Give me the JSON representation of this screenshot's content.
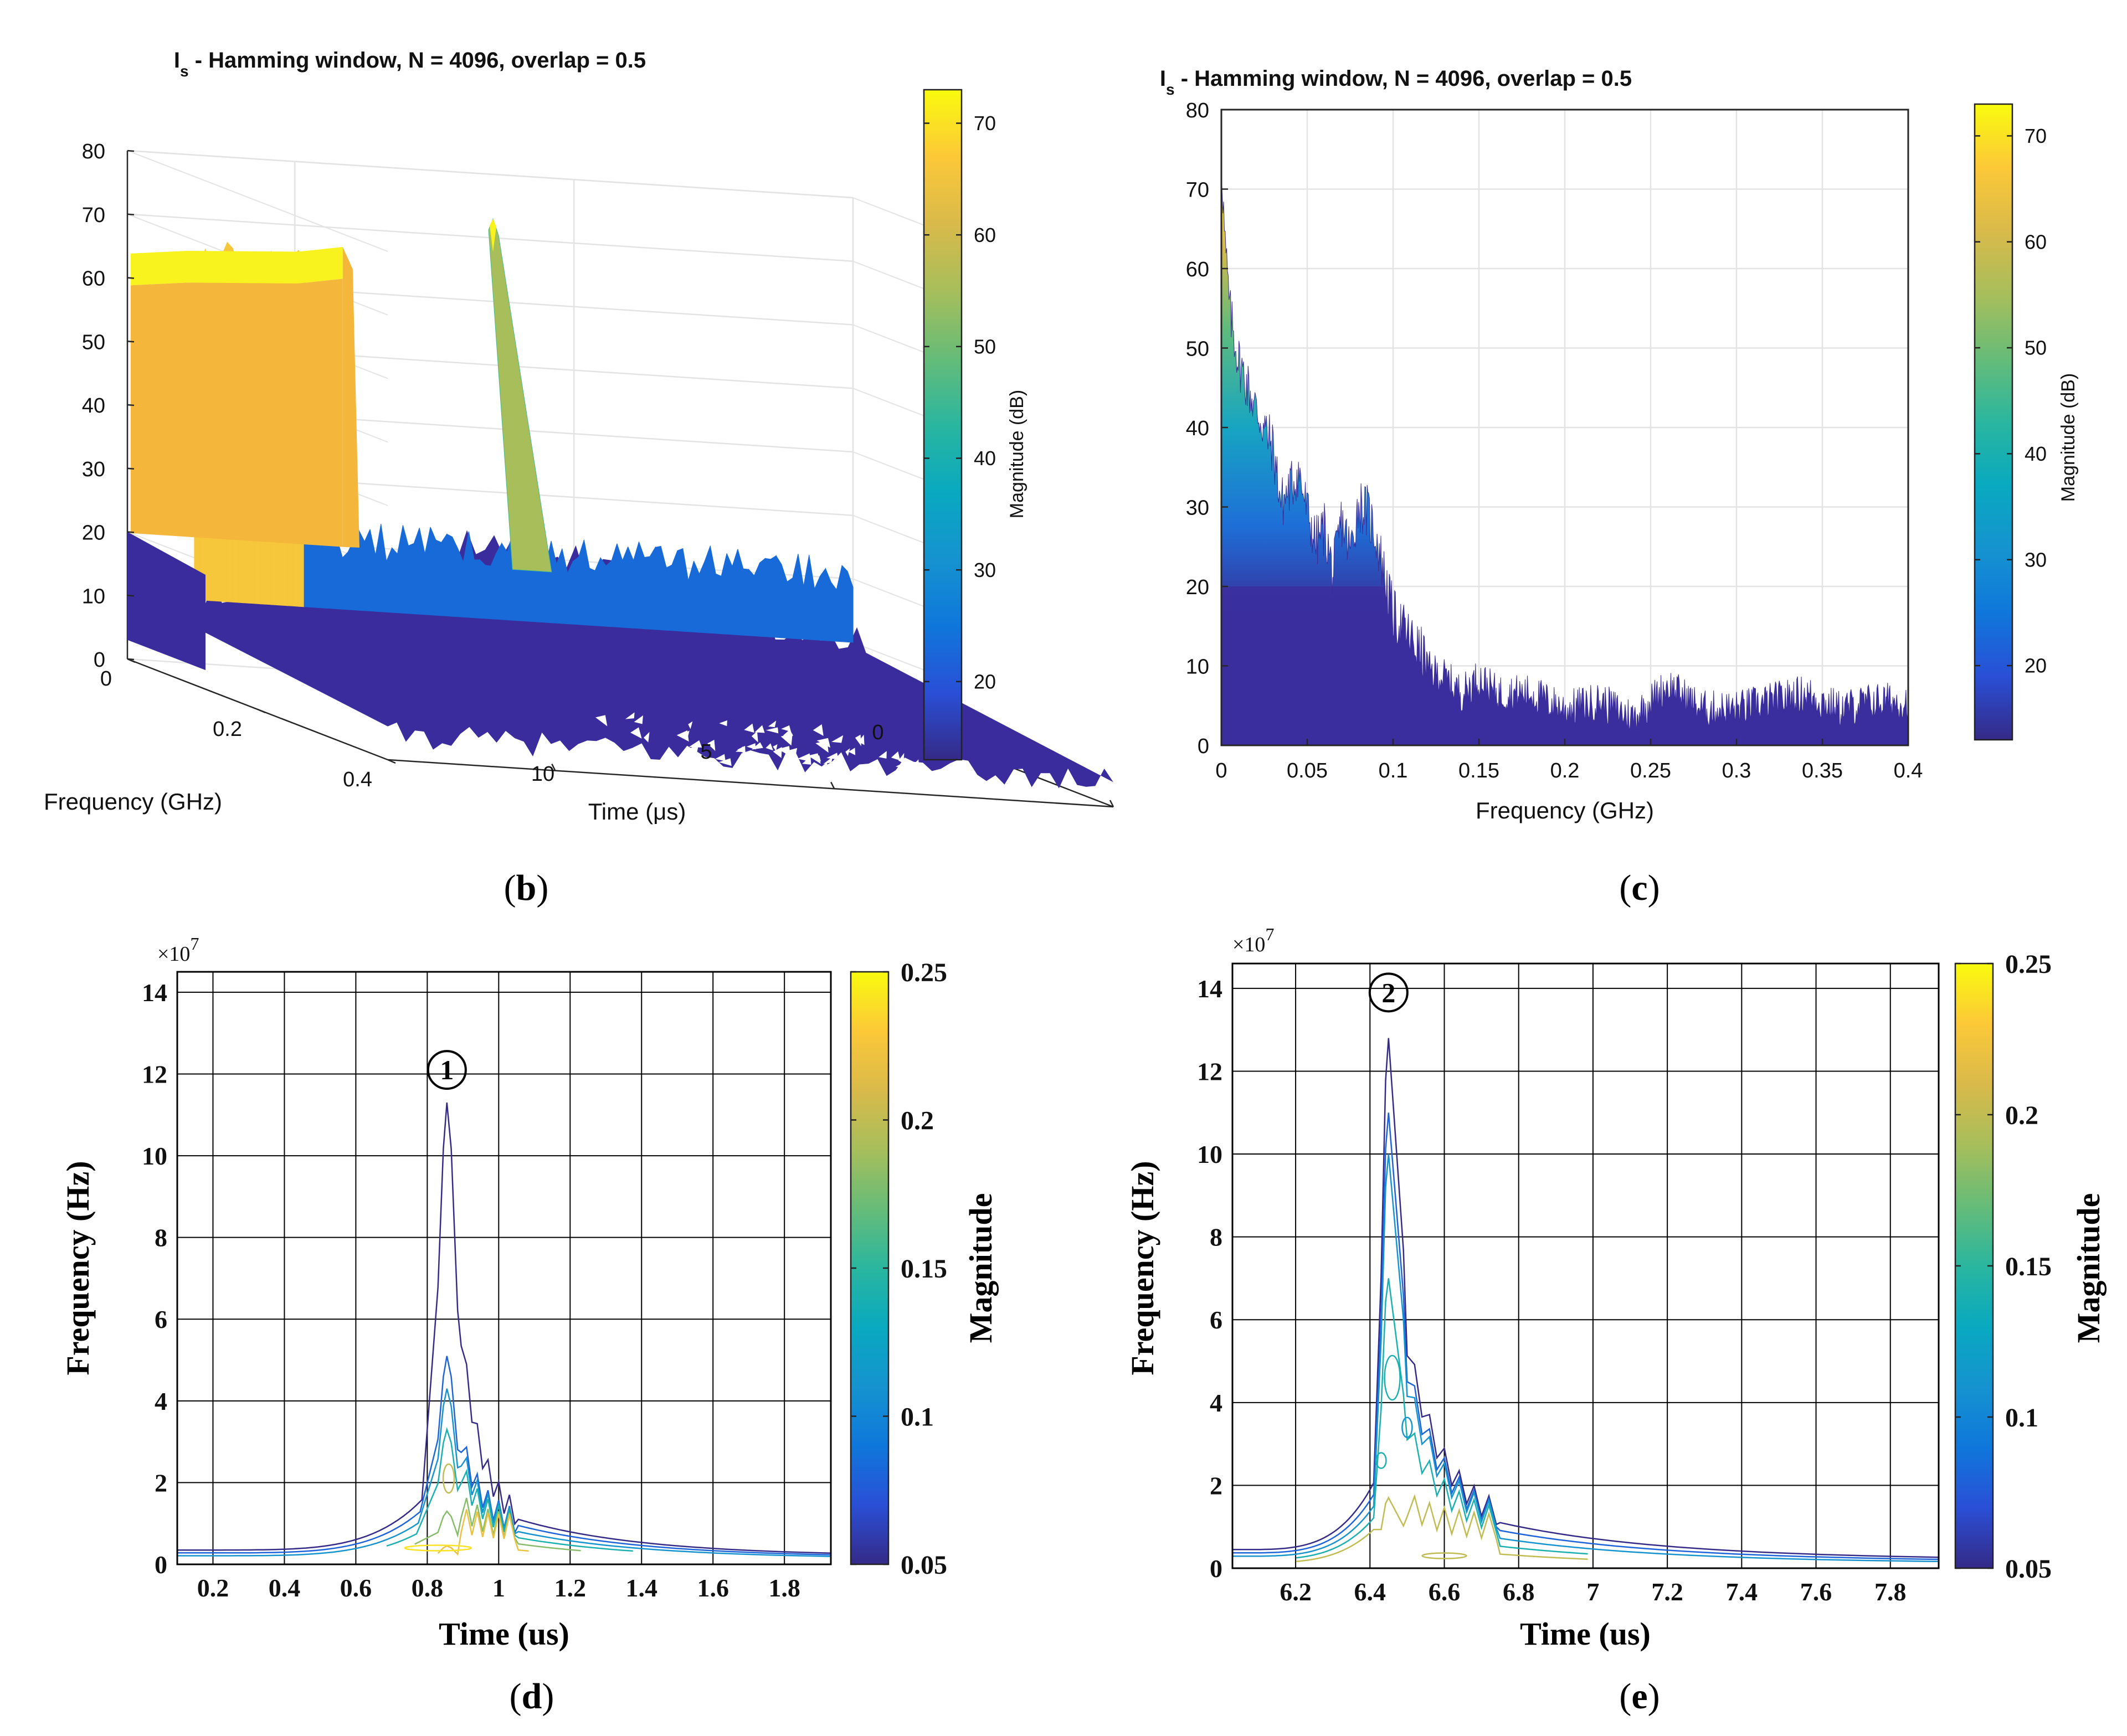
{
  "palette": {
    "parula": [
      "#352A87",
      "#2A4FD6",
      "#0F77DB",
      "#1593CF",
      "#09A9C0",
      "#2AB69F",
      "#66BC78",
      "#A7BE5B",
      "#D9BA4A",
      "#FCC838",
      "#F9FB0E"
    ],
    "grid_light": "#E3E3E3",
    "grid_dark": "#000000",
    "axis": "#262626",
    "text": "#111111",
    "fill_blue": "#3B2F9E",
    "fill_orange": "#F5B63C",
    "fill_yellow": "#F8F21F"
  },
  "panels": {
    "b": {
      "label": "(b)"
    },
    "c": {
      "label": "(c)"
    },
    "d": {
      "label": "(d)"
    },
    "e": {
      "label": "(e)"
    }
  },
  "chart_data": [
    {
      "id": "b",
      "type": "surface3d",
      "title": "I",
      "title_sub": "s",
      "title_rest": " - Hamming window, N = 4096, overlap = 0.5",
      "xlabel": "Time (μs)",
      "ylabel": "Frequency (GHz)",
      "zlabel": "",
      "xlim": [
        0,
        13
      ],
      "ylim": [
        0,
        0.4
      ],
      "zlim": [
        0,
        80
      ],
      "x_ticks": [
        0,
        5,
        10
      ],
      "x_tick_labels": [
        "0",
        "5",
        "10"
      ],
      "y_ticks": [
        0,
        0.2,
        0.4
      ],
      "y_tick_labels": [
        "0",
        "0.2",
        "0.4"
      ],
      "z_ticks": [
        0,
        10,
        20,
        30,
        40,
        50,
        60,
        70,
        80
      ],
      "z_tick_labels": [
        "0",
        "10",
        "20",
        "30",
        "40",
        "50",
        "60",
        "70",
        "80"
      ],
      "colorbar": {
        "label": "Magnitude (dB)",
        "range": [
          13,
          73
        ],
        "ticks": [
          20,
          30,
          40,
          50,
          60,
          70
        ],
        "tick_labels": [
          "20",
          "30",
          "40",
          "50",
          "60",
          "70"
        ]
      },
      "dc_ridge_db": {
        "t": [
          0,
          4,
          8,
          10,
          12,
          13
        ],
        "db": [
          70,
          73,
          69,
          66,
          65,
          64
        ]
      },
      "time_profile_peak_db": {
        "t": [
          0.9,
          2,
          3,
          4,
          5,
          5.5,
          6.45,
          7.5,
          9,
          10.5
        ],
        "db": [
          66,
          33,
          48,
          46,
          48,
          38,
          73,
          40,
          31,
          23
        ]
      }
    },
    {
      "id": "c",
      "type": "area",
      "title": "I",
      "title_sub": "s",
      "title_rest": " - Hamming window, N = 4096, overlap = 0.5",
      "xlabel": "Frequency (GHz)",
      "ylabel": "",
      "xlim": [
        0,
        0.4
      ],
      "ylim": [
        0,
        80
      ],
      "x_ticks": [
        0,
        0.05,
        0.1,
        0.15,
        0.2,
        0.25,
        0.3,
        0.35,
        0.4
      ],
      "x_tick_labels": [
        "0",
        "0.05",
        "0.1",
        "0.15",
        "0.2",
        "0.25",
        "0.3",
        "0.35",
        "0.4"
      ],
      "y_ticks": [
        0,
        10,
        20,
        30,
        40,
        50,
        60,
        70,
        80
      ],
      "y_tick_labels": [
        "0",
        "10",
        "20",
        "30",
        "40",
        "50",
        "60",
        "70",
        "80"
      ],
      "grid": true,
      "colorbar": {
        "label": "Magnitude (dB)",
        "range": [
          13,
          73
        ],
        "ticks": [
          20,
          30,
          40,
          50,
          60,
          70
        ],
        "tick_labels": [
          "20",
          "30",
          "40",
          "50",
          "60",
          "70"
        ]
      },
      "envelope": {
        "x": [
          0,
          0.002,
          0.005,
          0.01,
          0.015,
          0.02,
          0.03,
          0.035,
          0.045,
          0.05,
          0.055,
          0.06,
          0.065,
          0.07,
          0.075,
          0.08,
          0.085,
          0.09,
          0.095,
          0.1,
          0.11,
          0.12,
          0.13,
          0.14,
          0.15,
          0.16,
          0.18,
          0.2,
          0.22,
          0.24,
          0.26,
          0.28,
          0.3,
          0.32,
          0.34,
          0.36,
          0.38,
          0.4
        ],
        "db": [
          73,
          62,
          53,
          47,
          44,
          41,
          36,
          29,
          33,
          28,
          24,
          26,
          20,
          27,
          23,
          29,
          28,
          25,
          20,
          15,
          12,
          9,
          8,
          6,
          8,
          6,
          6,
          4,
          5,
          3,
          7,
          4,
          4,
          5,
          6,
          4,
          5,
          5
        ]
      }
    },
    {
      "id": "d",
      "type": "contour",
      "title": "",
      "xlabel": "Time (us)",
      "ylabel": "Frequency (Hz)",
      "y_exponent": "×10",
      "y_exponent_power": "7",
      "xlim": [
        0.1,
        1.93
      ],
      "ylim": [
        0,
        14.5
      ],
      "x_ticks": [
        0.2,
        0.4,
        0.6,
        0.8,
        1,
        1.2,
        1.4,
        1.6,
        1.8
      ],
      "x_tick_labels": [
        "0.2",
        "0.4",
        "0.6",
        "0.8",
        "1",
        "1.2",
        "1.4",
        "1.6",
        "1.8"
      ],
      "y_ticks": [
        0,
        2,
        4,
        6,
        8,
        10,
        12,
        14
      ],
      "y_tick_labels": [
        "0",
        "2",
        "4",
        "6",
        "8",
        "10",
        "12",
        "14"
      ],
      "grid": true,
      "colorbar": {
        "label": "Magnitude",
        "range": [
          0.05,
          0.25
        ],
        "ticks": [
          0.05,
          0.1,
          0.15,
          0.2,
          0.25
        ],
        "tick_labels": [
          "0.05",
          "0.1",
          "0.15",
          "0.2",
          "0.25"
        ]
      },
      "annotation": {
        "text": "1",
        "x": 0.855,
        "y": 12.1
      },
      "peak": {
        "time": 0.855,
        "levels": [
          0.05,
          0.08,
          0.11,
          0.14,
          0.18,
          0.22
        ],
        "peak_freq_e7": [
          11.3,
          5.1,
          4.3,
          3.3,
          1.3,
          0.45
        ]
      }
    },
    {
      "id": "e",
      "type": "contour",
      "title": "",
      "xlabel": "Time (us)",
      "ylabel": "Frequency (Hz)",
      "y_exponent": "×10",
      "y_exponent_power": "7",
      "xlim": [
        6.03,
        7.93
      ],
      "ylim": [
        0,
        14.6
      ],
      "x_ticks": [
        6.2,
        6.4,
        6.6,
        6.8,
        7,
        7.2,
        7.4,
        7.6,
        7.8
      ],
      "x_tick_labels": [
        "6.2",
        "6.4",
        "6.6",
        "6.8",
        "7",
        "7.2",
        "7.4",
        "7.6",
        "7.8"
      ],
      "y_ticks": [
        0,
        2,
        4,
        6,
        8,
        10,
        12,
        14
      ],
      "y_tick_labels": [
        "0",
        "2",
        "4",
        "6",
        "8",
        "10",
        "12",
        "14"
      ],
      "grid": true,
      "colorbar": {
        "label": "Magnitude",
        "range": [
          0.05,
          0.25
        ],
        "ticks": [
          0.05,
          0.1,
          0.15,
          0.2,
          0.25
        ],
        "tick_labels": [
          "0.05",
          "0.1",
          "0.15",
          "0.2",
          "0.25"
        ]
      },
      "annotation": {
        "text": "2",
        "x": 6.45,
        "y": 13.9
      },
      "peak": {
        "time": 6.45,
        "levels": [
          0.05,
          0.08,
          0.11,
          0.14,
          0.2
        ],
        "peak_freq_e7": [
          12.8,
          11.0,
          10.0,
          7.0,
          1.7
        ]
      }
    }
  ]
}
